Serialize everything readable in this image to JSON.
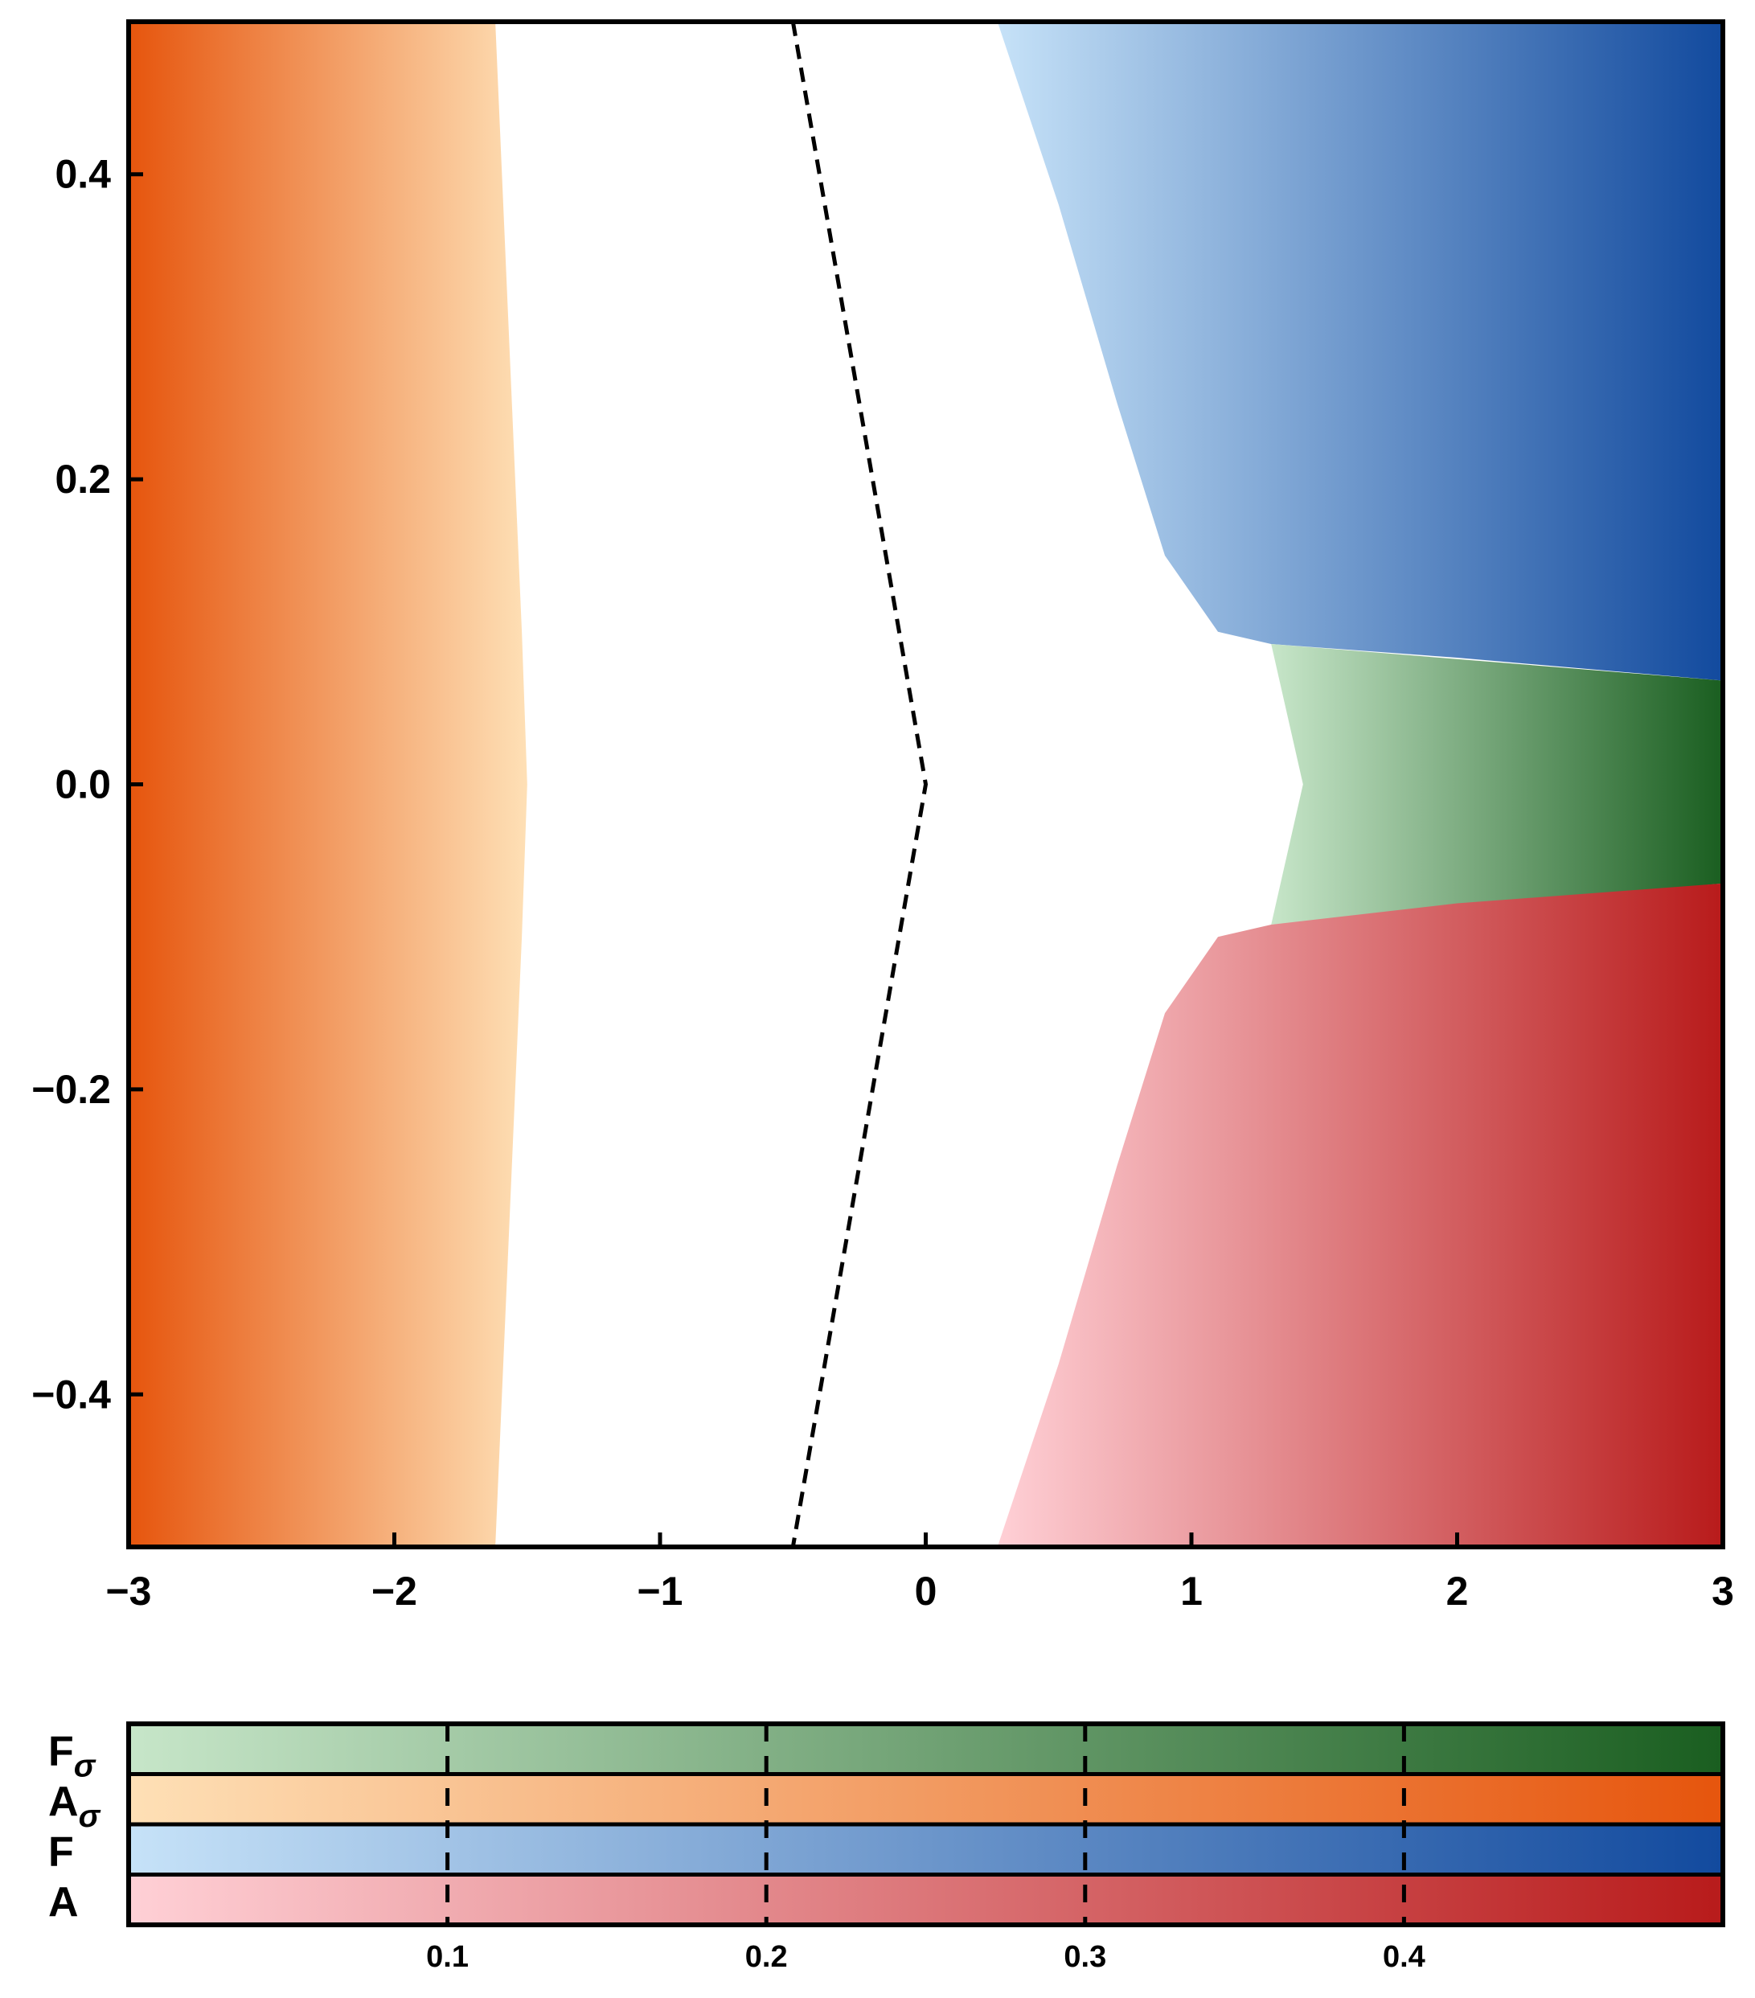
{
  "chart_data": [
    {
      "type": "heatmap",
      "title": "",
      "xlabel": "",
      "ylabel": "",
      "xlim": [
        -3,
        3
      ],
      "ylim": [
        -0.5,
        0.5
      ],
      "xticks": [
        -3,
        -2,
        -1,
        0,
        1,
        2,
        3
      ],
      "xtick_labels": [
        "−3",
        "−2",
        "−1",
        "0",
        "1",
        "2",
        "3"
      ],
      "yticks": [
        0.4,
        0.2,
        0.0,
        -0.2,
        -0.4
      ],
      "ytick_labels": [
        "0.4",
        "0.2",
        "0.0",
        "−0.2",
        "−0.4"
      ],
      "grid": false,
      "regions": [
        {
          "label": "Aσ",
          "colormap": [
            "#fee0b6",
            "#e6550d"
          ],
          "boundary": [
            {
              "x": -1.62,
              "y": -0.5
            },
            {
              "x": -1.57,
              "y": -0.3
            },
            {
              "x": -1.52,
              "y": -0.1
            },
            {
              "x": -1.5,
              "y": 0.0
            },
            {
              "x": -1.52,
              "y": 0.1
            },
            {
              "x": -1.57,
              "y": 0.3
            },
            {
              "x": -1.62,
              "y": 0.5
            }
          ]
        },
        {
          "label": "F",
          "colormap": [
            "#c6e2f8",
            "#124a9e"
          ],
          "boundary": [
            {
              "x": 0.27,
              "y": 0.5
            },
            {
              "x": 0.5,
              "y": 0.38
            },
            {
              "x": 0.72,
              "y": 0.25
            },
            {
              "x": 0.9,
              "y": 0.15
            },
            {
              "x": 1.1,
              "y": 0.1
            },
            {
              "x": 1.3,
              "y": 0.092
            },
            {
              "x": 2.0,
              "y": 0.083
            },
            {
              "x": 3.0,
              "y": 0.068
            }
          ]
        },
        {
          "label": "Fσ",
          "colormap": [
            "#c7e6c9",
            "#1a5e20"
          ],
          "boundary": [
            {
              "x": 1.3,
              "y": 0.092
            },
            {
              "x": 1.42,
              "y": 0.0
            },
            {
              "x": 1.3,
              "y": -0.092
            },
            {
              "x": 3.0,
              "y": -0.065
            },
            {
              "x": 3.0,
              "y": 0.068
            }
          ]
        },
        {
          "label": "A",
          "colormap": [
            "#ffd0d6",
            "#b81b1b"
          ],
          "boundary": [
            {
              "x": 3.0,
              "y": -0.065
            },
            {
              "x": 2.0,
              "y": -0.078
            },
            {
              "x": 1.3,
              "y": -0.092
            },
            {
              "x": 1.1,
              "y": -0.1
            },
            {
              "x": 0.9,
              "y": -0.15
            },
            {
              "x": 0.72,
              "y": -0.25
            },
            {
              "x": 0.5,
              "y": -0.38
            },
            {
              "x": 0.27,
              "y": -0.5
            }
          ]
        }
      ],
      "dashed_line": [
        {
          "x": -0.5,
          "y": 0.5
        },
        {
          "x": 0.0,
          "y": 0.0
        },
        {
          "x": -0.5,
          "y": -0.5
        }
      ]
    },
    {
      "type": "heatmap",
      "title": "",
      "xlim": [
        0,
        0.5
      ],
      "xticks": [
        0.1,
        0.2,
        0.3,
        0.4
      ],
      "xtick_labels": [
        "0.1",
        "0.2",
        "0.3",
        "0.4"
      ],
      "rows": [
        {
          "label_main": "F",
          "label_sub": "σ",
          "colors": [
            "#c7e6c9",
            "#1a5e20"
          ]
        },
        {
          "label_main": "A",
          "label_sub": "σ",
          "colors": [
            "#fee0b6",
            "#e6550d"
          ]
        },
        {
          "label_main": "F",
          "label_sub": "",
          "colors": [
            "#c6e2f8",
            "#124a9e"
          ]
        },
        {
          "label_main": "A",
          "label_sub": "",
          "colors": [
            "#ffd0d6",
            "#b81b1b"
          ]
        }
      ]
    }
  ]
}
